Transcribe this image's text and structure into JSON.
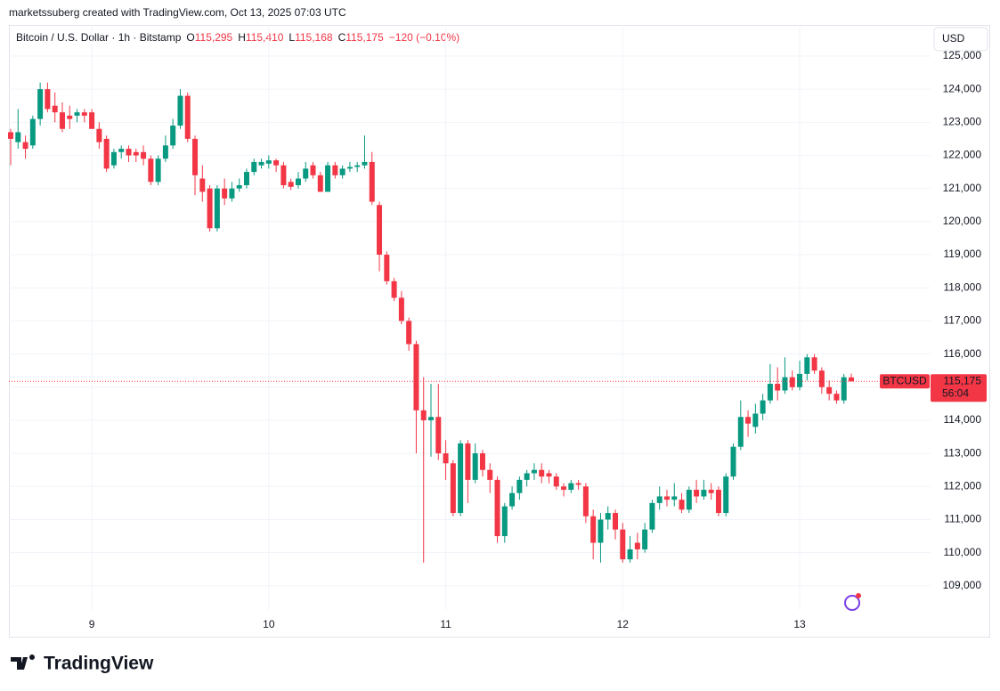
{
  "credit": "marketssuberg created with TradingView.com, Oct 13, 2025 07:03 UTC",
  "currency": "USD",
  "brand": "TradingView",
  "chart_data": {
    "type": "candlestick",
    "symbol": "Bitcoin / U.S. Dollar · 1h · Bitstamp",
    "legend_fields": [
      {
        "name": "O",
        "text": "115,295"
      },
      {
        "name": "H",
        "text": "115,410"
      },
      {
        "name": "L",
        "text": "115,168"
      },
      {
        "name": "C",
        "text": "115,175"
      }
    ],
    "change": "−120 (−0.10%)",
    "up_color": "#089981",
    "down_color": "#f23645",
    "categories": [
      null,
      null,
      null,
      null,
      null,
      null,
      null,
      null,
      null,
      null,
      null,
      "9",
      null,
      null,
      null,
      null,
      null,
      null,
      null,
      null,
      null,
      null,
      null,
      null,
      null,
      null,
      null,
      null,
      null,
      null,
      null,
      null,
      null,
      null,
      null,
      "10",
      null,
      null,
      null,
      null,
      null,
      null,
      null,
      null,
      null,
      null,
      null,
      null,
      null,
      null,
      null,
      null,
      null,
      null,
      null,
      null,
      null,
      null,
      null,
      "11",
      null,
      null,
      null,
      null,
      null,
      null,
      null,
      null,
      null,
      null,
      null,
      null,
      null,
      null,
      null,
      null,
      null,
      null,
      null,
      null,
      null,
      null,
      null,
      "12",
      null,
      null,
      null,
      null,
      null,
      null,
      null,
      null,
      null,
      null,
      null,
      null,
      null,
      null,
      null,
      null,
      null,
      null,
      null,
      null,
      null,
      null,
      null,
      "13",
      null,
      null,
      null,
      null,
      null,
      null,
      null
    ],
    "open": [
      122700,
      122400,
      122400,
      122300,
      123100,
      124000,
      123500,
      123300,
      123200,
      123200,
      123300,
      123300,
      122800,
      122500,
      121700,
      122100,
      122200,
      122100,
      122100,
      121900,
      121200,
      121900,
      122300,
      122900,
      123800,
      122500,
      121300,
      121000,
      119800,
      121000,
      120700,
      121000,
      121100,
      121500,
      121700,
      121750,
      121850,
      121700,
      121200,
      121100,
      121300,
      121700,
      121400,
      120900,
      121700,
      121400,
      121600,
      121650,
      121700,
      121800,
      120500,
      119000,
      118200,
      117700,
      117000,
      116300,
      114300,
      114000,
      114100,
      113000,
      112700,
      111200,
      113300,
      112200,
      113000,
      112500,
      112200,
      110500,
      111400,
      111800,
      112200,
      112400,
      112500,
      112400,
      112300,
      112000,
      111900,
      112100,
      112000,
      111100,
      110300,
      111000,
      111200,
      110700,
      109800,
      110300,
      110100,
      110700,
      111500,
      111700,
      111600,
      111600,
      111300,
      111900,
      111700,
      111900,
      111900,
      111200,
      112300,
      113200,
      114100,
      113800,
      114200,
      114600,
      115100,
      114900,
      115300,
      115000,
      115400,
      115900,
      115500,
      115000,
      114800,
      114600,
      115295
    ],
    "high": [
      122800,
      123400,
      122600,
      123200,
      124200,
      124200,
      123900,
      123600,
      123500,
      123400,
      123400,
      123400,
      123000,
      122600,
      122200,
      122300,
      122300,
      122200,
      122300,
      122000,
      122000,
      122600,
      123100,
      124000,
      123900,
      122600,
      121700,
      121100,
      121100,
      121300,
      121200,
      121300,
      121600,
      121900,
      121900,
      122000,
      121900,
      121800,
      121300,
      121500,
      121800,
      121800,
      121500,
      121800,
      121800,
      121700,
      121800,
      121800,
      122600,
      122100,
      120600,
      119100,
      118300,
      117900,
      117100,
      116400,
      115300,
      115100,
      115100,
      113400,
      112800,
      113400,
      113400,
      113300,
      113100,
      112700,
      112300,
      111500,
      112000,
      112300,
      112500,
      112700,
      112700,
      112500,
      112400,
      112100,
      112200,
      112200,
      112100,
      111300,
      111200,
      111400,
      111300,
      110900,
      110500,
      110600,
      110900,
      111600,
      112000,
      111900,
      112100,
      111800,
      112000,
      112200,
      112200,
      112100,
      112000,
      112400,
      113300,
      114600,
      114300,
      114500,
      114800,
      115700,
      115600,
      115900,
      115500,
      115800,
      116000,
      116000,
      115600,
      115200,
      114900,
      115400,
      115410
    ],
    "low": [
      121700,
      122200,
      121900,
      122200,
      122900,
      123300,
      123000,
      122700,
      122800,
      123000,
      123000,
      122800,
      122200,
      121500,
      121600,
      121900,
      121800,
      121800,
      121700,
      121100,
      121100,
      121800,
      122200,
      122800,
      122400,
      120800,
      120600,
      119700,
      119700,
      120500,
      120600,
      120900,
      121000,
      121400,
      121600,
      121600,
      121500,
      121000,
      120950,
      121000,
      121200,
      121300,
      120900,
      120900,
      121300,
      121300,
      121500,
      121500,
      121600,
      120500,
      118500,
      118100,
      117600,
      116900,
      116100,
      113000,
      109700,
      112900,
      112800,
      112200,
      111100,
      111100,
      111500,
      112100,
      112300,
      111800,
      110300,
      110300,
      111300,
      111600,
      112000,
      112200,
      112100,
      112100,
      111900,
      111700,
      111800,
      111900,
      110900,
      109800,
      109700,
      110700,
      110400,
      109700,
      109700,
      109800,
      110000,
      110600,
      111300,
      111400,
      111400,
      111200,
      111200,
      111500,
      111600,
      111600,
      111100,
      111100,
      112200,
      113100,
      113500,
      113600,
      114000,
      114500,
      114600,
      114800,
      114900,
      114900,
      115200,
      115400,
      114800,
      114600,
      114500,
      114500,
      115168
    ],
    "close": [
      122500,
      122700,
      122200,
      123100,
      124000,
      123400,
      123300,
      122800,
      123100,
      123300,
      123200,
      122800,
      122400,
      121600,
      122100,
      122200,
      122000,
      122000,
      121900,
      121200,
      121900,
      122300,
      122900,
      123800,
      122500,
      121400,
      120900,
      119800,
      121000,
      120700,
      121000,
      121100,
      121500,
      121800,
      121800,
      121850,
      121700,
      121100,
      121050,
      121300,
      121600,
      121400,
      120900,
      121700,
      121400,
      121600,
      121650,
      121700,
      121800,
      120600,
      119000,
      118200,
      117700,
      117000,
      116300,
      114300,
      114000,
      114100,
      113000,
      112700,
      111200,
      113300,
      112200,
      113000,
      112500,
      112200,
      110500,
      111400,
      111800,
      112200,
      112400,
      112500,
      112300,
      112300,
      112000,
      111900,
      112100,
      112050,
      111100,
      110300,
      111000,
      111200,
      110700,
      109800,
      110100,
      110100,
      110700,
      111500,
      111700,
      111600,
      111700,
      111300,
      111900,
      111700,
      111900,
      111800,
      111200,
      112300,
      113200,
      114100,
      113900,
      114200,
      114600,
      115100,
      114900,
      115300,
      115000,
      115400,
      115900,
      115500,
      115000,
      114800,
      114600,
      115300,
      115175
    ],
    "ylim": [
      108270,
      125940
    ],
    "yticks": [
      {
        "value": 109000,
        "label": "109,000"
      },
      {
        "value": 110000,
        "label": "110,000"
      },
      {
        "value": 111000,
        "label": "111,000"
      },
      {
        "value": 112000,
        "label": "112,000"
      },
      {
        "value": 113000,
        "label": "113,000"
      },
      {
        "value": 114000,
        "label": "114,000"
      },
      {
        "value": 115000,
        "label": "115,000"
      },
      {
        "value": 116000,
        "label": "116,000"
      },
      {
        "value": 117000,
        "label": "117,000"
      },
      {
        "value": 118000,
        "label": "118,000"
      },
      {
        "value": 119000,
        "label": "119,000"
      },
      {
        "value": 120000,
        "label": "120,000"
      },
      {
        "value": 121000,
        "label": "121,000"
      },
      {
        "value": 122000,
        "label": "122,000"
      },
      {
        "value": 123000,
        "label": "123,000"
      },
      {
        "value": 124000,
        "label": "124,000"
      },
      {
        "value": 125000,
        "label": "125,000"
      }
    ],
    "grid": true,
    "last_price": {
      "value": 115175,
      "label": "115,175"
    },
    "last_symbol": "BTCUSD",
    "countdown": "56:04"
  }
}
